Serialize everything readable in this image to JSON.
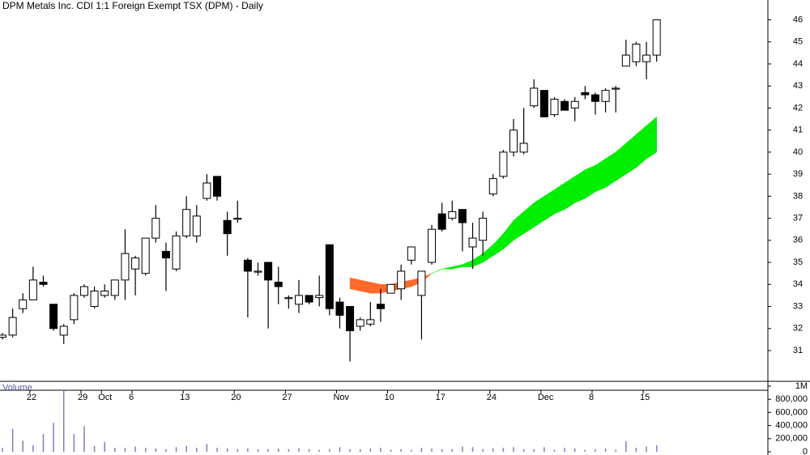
{
  "chart_data": {
    "type": "candlestick",
    "title": "DPM Metals Inc. CDI 1:1 Foreign Exempt TSX (DPM) - Daily",
    "volume_label": "Volume",
    "categories": [
      null,
      null,
      null,
      "22",
      null,
      null,
      null,
      null,
      "29",
      null,
      "Oct",
      null,
      null,
      "6",
      null,
      null,
      null,
      null,
      "13",
      null,
      null,
      null,
      null,
      "20",
      null,
      null,
      null,
      null,
      "27",
      null,
      null,
      null,
      null,
      "Nov",
      null,
      null,
      null,
      null,
      "10",
      null,
      null,
      null,
      null,
      "17",
      null,
      null,
      null,
      null,
      "24",
      null,
      null,
      null,
      null,
      "Dec",
      null,
      null,
      null,
      null,
      "8",
      null,
      null,
      null,
      null,
      "15",
      null
    ],
    "open": [
      31.6,
      31.7,
      32.9,
      33.3,
      34.1,
      33.1,
      31.7,
      32.4,
      33.5,
      33.0,
      33.5,
      33.5,
      34.2,
      34.7,
      34.5,
      36.1,
      35.5,
      34.7,
      36.2,
      36.2,
      37.9,
      38.9,
      36.9,
      37.0,
      35.1,
      34.6,
      35.0,
      34.1,
      33.4,
      33.1,
      33.5,
      33.4,
      35.8,
      33.2,
      33.0,
      32.1,
      32.2,
      33.1,
      33.6,
      33.8,
      35.1,
      33.5,
      35.0,
      37.2,
      37.0,
      37.4,
      35.7,
      36.0,
      38.1,
      38.9,
      40.0,
      40.0,
      42.1,
      42.8,
      41.7,
      42.3,
      42.0,
      42.7,
      42.6,
      42.3,
      42.9,
      43.9,
      44.1,
      44.1,
      44.4
    ],
    "high": [
      31.8,
      32.9,
      33.6,
      34.8,
      34.4,
      33.1,
      32.2,
      33.6,
      34.0,
      33.9,
      34.0,
      34.2,
      36.5,
      35.3,
      36.1,
      37.6,
      35.9,
      36.4,
      38.0,
      37.6,
      39.0,
      38.9,
      37.3,
      37.8,
      35.2,
      35.0,
      35.0,
      34.8,
      33.5,
      34.2,
      33.5,
      34.4,
      35.8,
      33.4,
      33.0,
      32.5,
      33.2,
      33.8,
      34.0,
      34.9,
      35.7,
      34.6,
      36.7,
      37.7,
      37.8,
      37.4,
      36.8,
      37.3,
      39.0,
      40.1,
      41.5,
      42.0,
      43.3,
      42.8,
      42.5,
      42.4,
      42.5,
      43.0,
      42.7,
      42.9,
      43.0,
      45.1,
      45.0,
      45.0,
      46.0
    ],
    "low": [
      31.5,
      31.6,
      32.7,
      33.3,
      33.9,
      31.9,
      31.3,
      32.2,
      33.4,
      32.9,
      33.4,
      33.3,
      33.3,
      33.5,
      34.4,
      35.9,
      33.7,
      34.6,
      36.1,
      35.9,
      37.8,
      37.8,
      35.3,
      36.8,
      32.5,
      34.4,
      32.0,
      33.1,
      32.9,
      32.7,
      33.1,
      33.0,
      32.6,
      32.0,
      30.5,
      31.9,
      32.1,
      32.3,
      33.6,
      33.3,
      34.9,
      31.5,
      34.9,
      36.4,
      36.9,
      35.5,
      34.7,
      35.3,
      38.0,
      38.8,
      39.8,
      39.9,
      42.0,
      41.6,
      41.6,
      41.9,
      41.4,
      42.4,
      41.7,
      41.8,
      41.8,
      43.9,
      43.9,
      43.3,
      44.1
    ],
    "close": [
      31.7,
      32.5,
      33.3,
      34.2,
      34.0,
      32.0,
      32.1,
      33.5,
      33.9,
      33.7,
      33.7,
      34.2,
      35.4,
      35.2,
      36.1,
      37.0,
      35.2,
      36.2,
      37.4,
      37.1,
      38.6,
      38.0,
      36.3,
      37.0,
      34.6,
      34.6,
      34.2,
      33.9,
      33.4,
      33.5,
      33.2,
      33.5,
      32.9,
      32.6,
      31.9,
      32.4,
      32.4,
      32.9,
      34.0,
      34.6,
      35.7,
      34.6,
      36.5,
      36.5,
      37.3,
      36.8,
      36.1,
      37.0,
      38.8,
      40.0,
      41.0,
      40.4,
      42.9,
      41.6,
      42.4,
      41.9,
      42.3,
      42.6,
      42.3,
      42.8,
      42.9,
      44.4,
      44.9,
      44.4,
      46.0
    ],
    "volume": [
      60000,
      350000,
      170000,
      100000,
      270000,
      440000,
      950000,
      270000,
      390000,
      90000,
      150000,
      60000,
      60000,
      80000,
      60000,
      50000,
      40000,
      70000,
      90000,
      60000,
      120000,
      60000,
      50000,
      40000,
      50000,
      40000,
      40000,
      50000,
      40000,
      50000,
      40000,
      30000,
      40000,
      70000,
      40000,
      40000,
      50000,
      60000,
      30000,
      40000,
      30000,
      60000,
      50000,
      40000,
      40000,
      80000,
      70000,
      40000,
      50000,
      60000,
      70000,
      40000,
      40000,
      70000,
      30000,
      60000,
      50000,
      30000,
      40000,
      50000,
      30000,
      160000,
      60000,
      80000,
      100000
    ],
    "cloud": {
      "span1": [
        null,
        null,
        null,
        null,
        null,
        null,
        null,
        null,
        null,
        null,
        null,
        null,
        null,
        null,
        null,
        null,
        null,
        null,
        null,
        null,
        null,
        null,
        null,
        null,
        null,
        null,
        null,
        null,
        null,
        null,
        null,
        null,
        null,
        null,
        33.8,
        33.7,
        33.6,
        33.6,
        33.7,
        33.8,
        33.9,
        34.1,
        34.5,
        34.7,
        34.8,
        34.9,
        35.1,
        35.4,
        35.8,
        36.3,
        36.9,
        37.3,
        37.7,
        38.0,
        38.3,
        38.6,
        38.9,
        39.2,
        39.4,
        39.7,
        40.0,
        40.4,
        40.8,
        41.2,
        41.6
      ],
      "span2": [
        null,
        null,
        null,
        null,
        null,
        null,
        null,
        null,
        null,
        null,
        null,
        null,
        null,
        null,
        null,
        null,
        null,
        null,
        null,
        null,
        null,
        null,
        null,
        null,
        null,
        null,
        null,
        null,
        null,
        null,
        null,
        null,
        null,
        null,
        34.3,
        34.2,
        34.1,
        34.0,
        34.0,
        34.1,
        34.2,
        34.3,
        34.5,
        34.7,
        34.7,
        34.8,
        34.8,
        35.0,
        35.3,
        35.6,
        36.0,
        36.3,
        36.6,
        36.9,
        37.2,
        37.4,
        37.7,
        37.9,
        38.2,
        38.4,
        38.7,
        39.0,
        39.3,
        39.7,
        40.0
      ],
      "up_color": "#00ee00",
      "down_color": "#ff6a2a"
    },
    "ylim": [
      29.2,
      46.9
    ],
    "yticks": [
      31,
      32,
      33,
      34,
      35,
      36,
      37,
      38,
      39,
      40,
      41,
      42,
      43,
      44,
      45,
      46
    ],
    "volume_ylim": [
      0,
      1000000
    ],
    "volume_yticks": [
      0,
      {
        "value": 200000,
        "label": "200,000"
      },
      {
        "value": 400000,
        "label": "400,000"
      },
      {
        "value": 600000,
        "label": "600,000"
      },
      {
        "value": 800000,
        "label": "800,000"
      },
      {
        "value": 1000000,
        "label": "1M"
      }
    ],
    "volume_color": "#7c7cc0"
  }
}
